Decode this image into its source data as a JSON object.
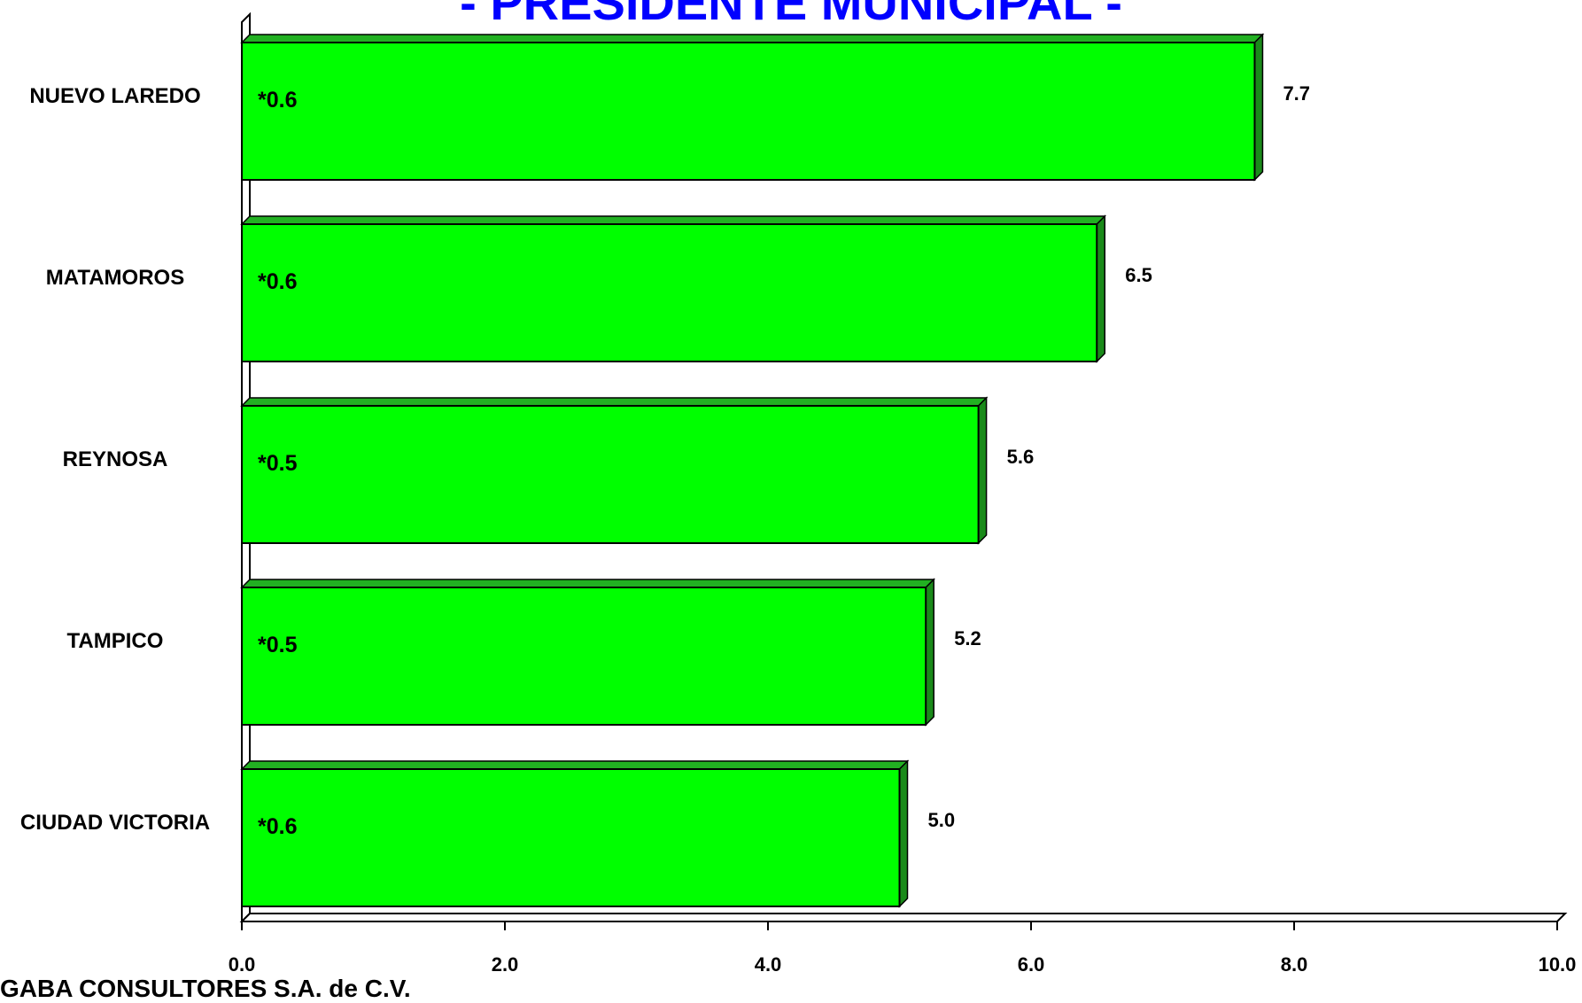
{
  "chart_data": {
    "type": "bar",
    "orientation": "horizontal",
    "title": "- PRESIDENTE MUNICIPAL -",
    "categories": [
      "NUEVO LAREDO",
      "MATAMOROS",
      "REYNOSA",
      "TAMPICO",
      "CIUDAD VICTORIA"
    ],
    "values": [
      7.7,
      6.5,
      5.6,
      5.2,
      5.0
    ],
    "value_labels": [
      "7.7",
      "6.5",
      "5.6",
      "5.2",
      "5.0"
    ],
    "annotations": [
      "*0.6",
      "*0.6",
      "*0.5",
      "*0.5",
      "*0.6"
    ],
    "xlim": [
      0,
      10
    ],
    "xticks": [
      "0.0",
      "2.0",
      "4.0",
      "6.0",
      "8.0",
      "10.0"
    ],
    "xlabel": "",
    "ylabel": "",
    "grid": false,
    "colors": {
      "bar_face": "#00ff00",
      "bar_side": "#1a8a1a",
      "bar_top": "#22b022",
      "title": "#0000ff"
    }
  },
  "footer": "GABA CONSULTORES S.A. de C.V."
}
